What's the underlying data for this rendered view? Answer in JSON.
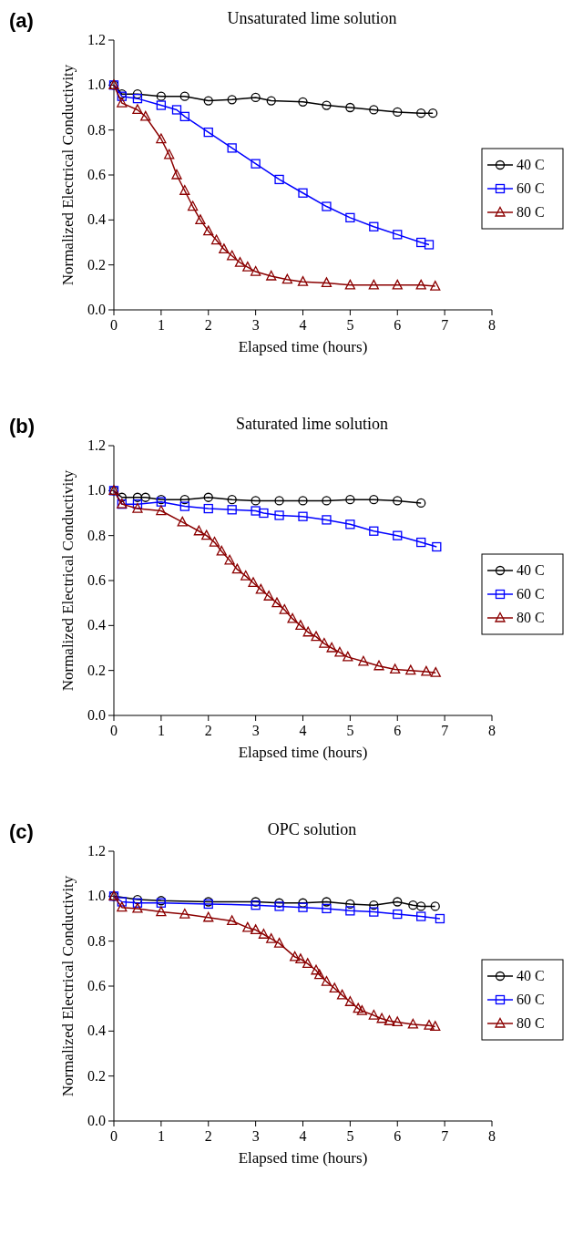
{
  "chart_data": [
    {
      "type": "line",
      "title": "Unsaturated lime solution",
      "xlabel": "Elapsed time (hours)",
      "ylabel": "Normalized Electrical Conductivity",
      "annotations": [
        "(a)"
      ],
      "xlim": [
        0,
        8
      ],
      "xticks": [
        0,
        1,
        2,
        3,
        4,
        5,
        6,
        7,
        8
      ],
      "ylim": [
        0,
        1.2
      ],
      "yticks": [
        {
          "value": 0,
          "label": "0.0"
        },
        {
          "value": 0.2,
          "label": "0.2"
        },
        {
          "value": 0.4,
          "label": "0.4"
        },
        {
          "value": 0.6,
          "label": "0.6"
        },
        {
          "value": 0.8,
          "label": "0.8"
        },
        {
          "value": 1,
          "label": "1.0"
        },
        {
          "value": 1.2,
          "label": "1.2"
        }
      ],
      "grid": false,
      "legend": "right",
      "line_style": "solid",
      "series": [
        {
          "name": "40 C",
          "color": "#000000",
          "marker": "circle",
          "x": [
            0,
            0.17,
            0.5,
            1,
            1.5,
            2,
            2.5,
            3,
            3.33,
            4,
            4.5,
            5,
            5.5,
            6,
            6.5,
            6.75
          ],
          "values": [
            1.0,
            0.96,
            0.96,
            0.95,
            0.95,
            0.93,
            0.935,
            0.945,
            0.93,
            0.925,
            0.91,
            0.9,
            0.89,
            0.88,
            0.875,
            0.875
          ]
        },
        {
          "name": "60 C",
          "color": "#0000ff",
          "marker": "square",
          "x": [
            0,
            0.17,
            0.5,
            1,
            1.33,
            1.5,
            2,
            2.5,
            3,
            3.5,
            4,
            4.5,
            5,
            5.5,
            6,
            6.5,
            6.67
          ],
          "values": [
            1.0,
            0.95,
            0.94,
            0.91,
            0.89,
            0.86,
            0.79,
            0.72,
            0.65,
            0.58,
            0.52,
            0.46,
            0.41,
            0.37,
            0.335,
            0.3,
            0.29
          ]
        },
        {
          "name": "80 C",
          "color": "#8b0000",
          "marker": "triangle",
          "x": [
            0,
            0.17,
            0.5,
            0.67,
            1,
            1.17,
            1.33,
            1.5,
            1.67,
            1.83,
            2,
            2.17,
            2.33,
            2.5,
            2.67,
            2.83,
            3,
            3.33,
            3.67,
            4,
            4.5,
            5,
            5.5,
            6,
            6.5,
            6.8
          ],
          "values": [
            1.0,
            0.92,
            0.89,
            0.86,
            0.76,
            0.69,
            0.6,
            0.53,
            0.46,
            0.4,
            0.35,
            0.31,
            0.27,
            0.24,
            0.21,
            0.19,
            0.17,
            0.15,
            0.135,
            0.125,
            0.12,
            0.11,
            0.11,
            0.11,
            0.11,
            0.105
          ]
        }
      ]
    },
    {
      "type": "line",
      "title": "Saturated lime solution",
      "xlabel": "Elapsed time (hours)",
      "ylabel": "Normalized Electrical Conductivity",
      "annotations": [
        "(b)"
      ],
      "xlim": [
        0,
        8
      ],
      "xticks": [
        0,
        1,
        2,
        3,
        4,
        5,
        6,
        7,
        8
      ],
      "ylim": [
        0,
        1.2
      ],
      "yticks": [
        {
          "value": 0,
          "label": "0.0"
        },
        {
          "value": 0.2,
          "label": "0.2"
        },
        {
          "value": 0.4,
          "label": "0.4"
        },
        {
          "value": 0.6,
          "label": "0.6"
        },
        {
          "value": 0.8,
          "label": "0.8"
        },
        {
          "value": 1,
          "label": "1.0"
        },
        {
          "value": 1.2,
          "label": "1.2"
        }
      ],
      "grid": false,
      "legend": "right",
      "line_style": "solid",
      "series": [
        {
          "name": "40 C",
          "color": "#000000",
          "marker": "circle",
          "x": [
            0,
            0.17,
            0.5,
            0.67,
            1,
            1.5,
            2,
            2.5,
            3,
            3.5,
            4,
            4.5,
            5,
            5.5,
            6,
            6.5
          ],
          "values": [
            1.0,
            0.97,
            0.97,
            0.97,
            0.96,
            0.96,
            0.97,
            0.96,
            0.955,
            0.955,
            0.955,
            0.955,
            0.96,
            0.96,
            0.955,
            0.945
          ]
        },
        {
          "name": "60 C",
          "color": "#0000ff",
          "marker": "square",
          "x": [
            0,
            0.17,
            0.5,
            1,
            1.5,
            2,
            2.5,
            3,
            3.17,
            3.5,
            4,
            4.5,
            5,
            5.5,
            6,
            6.5,
            6.83
          ],
          "values": [
            1.0,
            0.94,
            0.94,
            0.95,
            0.93,
            0.92,
            0.915,
            0.91,
            0.9,
            0.89,
            0.885,
            0.87,
            0.85,
            0.82,
            0.8,
            0.77,
            0.75
          ]
        },
        {
          "name": "80 C",
          "color": "#8b0000",
          "marker": "triangle",
          "x": [
            0,
            0.17,
            0.5,
            1,
            1.45,
            1.8,
            1.96,
            2.13,
            2.28,
            2.45,
            2.61,
            2.79,
            2.95,
            3.11,
            3.28,
            3.45,
            3.61,
            3.78,
            3.95,
            4.11,
            4.28,
            4.45,
            4.61,
            4.78,
            4.95,
            5.28,
            5.61,
            5.95,
            6.28,
            6.61,
            6.81
          ],
          "values": [
            1.0,
            0.94,
            0.92,
            0.91,
            0.86,
            0.82,
            0.8,
            0.77,
            0.73,
            0.69,
            0.65,
            0.62,
            0.59,
            0.56,
            0.53,
            0.5,
            0.47,
            0.43,
            0.4,
            0.37,
            0.35,
            0.32,
            0.3,
            0.28,
            0.26,
            0.24,
            0.22,
            0.205,
            0.2,
            0.195,
            0.19
          ]
        }
      ]
    },
    {
      "type": "line",
      "title": "OPC solution",
      "xlabel": "Elapsed time (hours)",
      "ylabel": "Normalized Electrical Conductivity",
      "annotations": [
        "(c)"
      ],
      "xlim": [
        0,
        8
      ],
      "xticks": [
        0,
        1,
        2,
        3,
        4,
        5,
        6,
        7,
        8
      ],
      "ylim": [
        0,
        1.2
      ],
      "yticks": [
        {
          "value": 0,
          "label": "0.0"
        },
        {
          "value": 0.2,
          "label": "0.2"
        },
        {
          "value": 0.4,
          "label": "0.4"
        },
        {
          "value": 0.6,
          "label": "0.6"
        },
        {
          "value": 0.8,
          "label": "0.8"
        },
        {
          "value": 1,
          "label": "1.0"
        },
        {
          "value": 1.2,
          "label": "1.2"
        }
      ],
      "grid": false,
      "legend": "right",
      "line_style": "solid",
      "series": [
        {
          "name": "40 C",
          "color": "#000000",
          "marker": "circle",
          "x": [
            0,
            0.5,
            1,
            2,
            3,
            3.5,
            4,
            4.5,
            5,
            5.5,
            6,
            6.33,
            6.5,
            6.8
          ],
          "values": [
            1.0,
            0.985,
            0.98,
            0.975,
            0.975,
            0.97,
            0.97,
            0.975,
            0.965,
            0.96,
            0.975,
            0.96,
            0.955,
            0.955
          ]
        },
        {
          "name": "60 C",
          "color": "#0000ff",
          "marker": "square",
          "x": [
            0,
            0.17,
            0.5,
            1,
            2,
            3,
            3.5,
            4,
            4.5,
            5,
            5.5,
            6,
            6.5,
            6.9
          ],
          "values": [
            1.0,
            0.975,
            0.97,
            0.97,
            0.965,
            0.96,
            0.955,
            0.95,
            0.945,
            0.935,
            0.93,
            0.92,
            0.91,
            0.9
          ]
        },
        {
          "name": "80 C",
          "color": "#8b0000",
          "marker": "triangle",
          "x": [
            0,
            0.17,
            0.5,
            1,
            1.5,
            2,
            2.5,
            2.83,
            3,
            3.17,
            3.33,
            3.5,
            3.83,
            3.95,
            4.1,
            4.28,
            4.35,
            4.5,
            4.67,
            4.83,
            5,
            5.17,
            5.25,
            5.5,
            5.67,
            5.83,
            6,
            6.33,
            6.67,
            6.8
          ],
          "values": [
            1.0,
            0.95,
            0.945,
            0.93,
            0.92,
            0.905,
            0.89,
            0.86,
            0.85,
            0.83,
            0.81,
            0.79,
            0.73,
            0.72,
            0.7,
            0.67,
            0.65,
            0.62,
            0.59,
            0.56,
            0.53,
            0.5,
            0.49,
            0.47,
            0.455,
            0.445,
            0.44,
            0.43,
            0.425,
            0.42
          ]
        }
      ]
    }
  ]
}
